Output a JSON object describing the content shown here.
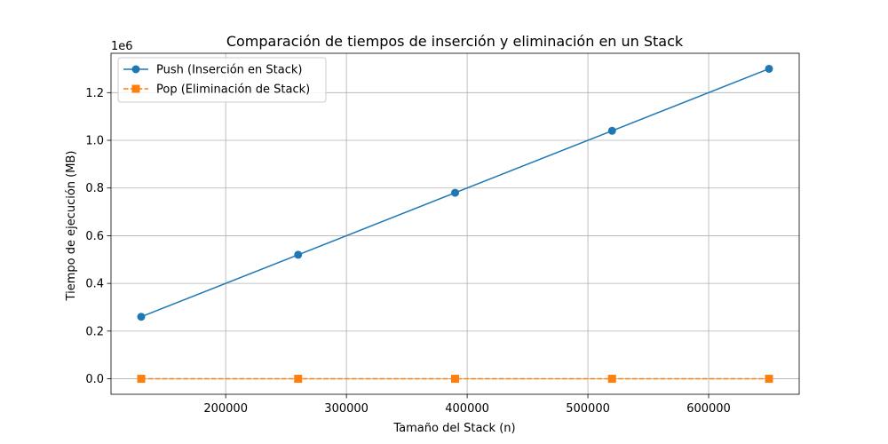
{
  "chart_data": {
    "type": "line",
    "title": "Comparación de tiempos de inserción y eliminación en un Stack",
    "xlabel": "Tamaño del Stack (n)",
    "ylabel": "Tiempo de ejecución (MB)",
    "y_offset_label": "1e6",
    "x": [
      130000,
      260000,
      390000,
      520000,
      650000
    ],
    "xlim": [
      105000,
      675000
    ],
    "ylim": [
      -65000,
      1365000
    ],
    "x_ticks": [
      200000,
      300000,
      400000,
      500000,
      600000
    ],
    "x_tick_labels": [
      "200000",
      "300000",
      "400000",
      "500000",
      "600000"
    ],
    "y_ticks": [
      0,
      200000,
      400000,
      600000,
      800000,
      1000000,
      1200000
    ],
    "y_tick_labels": [
      "0.0",
      "0.2",
      "0.4",
      "0.6",
      "0.8",
      "1.0",
      "1.2"
    ],
    "grid": true,
    "legend_position": "top-left",
    "series": [
      {
        "name": "Push (Inserción en Stack)",
        "values": [
          260000,
          520000,
          780000,
          1040000,
          1300000
        ],
        "color": "#1f77b4",
        "marker": "circle",
        "line_style": "solid"
      },
      {
        "name": "Pop (Eliminación de Stack)",
        "values": [
          0,
          0,
          0,
          0,
          0
        ],
        "color": "#ff7f0e",
        "marker": "square",
        "line_style": "dashed"
      }
    ]
  }
}
